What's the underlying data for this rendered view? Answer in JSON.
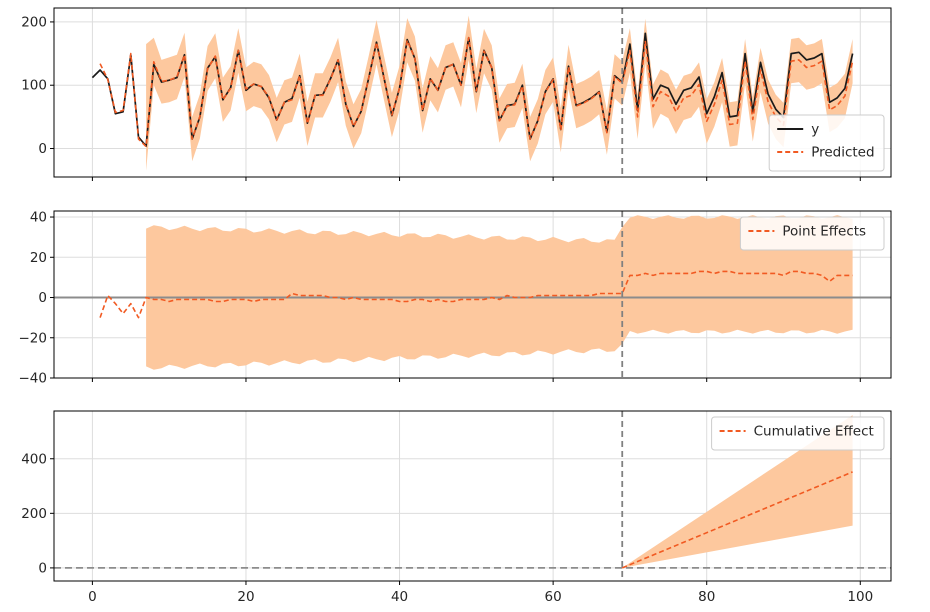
{
  "chart_data": [
    {
      "type": "line",
      "xlim": [
        -5,
        104
      ],
      "ylim": [
        -45,
        222
      ],
      "yticks": [
        0,
        100,
        200
      ],
      "xticks": [
        0,
        20,
        40,
        60,
        80,
        100
      ],
      "grid": true,
      "legend_placement": "lower-right",
      "intervention_x": 69,
      "series": [
        {
          "name": "y",
          "color": "#1a1a1a",
          "style": "solid",
          "x": [
            0,
            1,
            2,
            3,
            4,
            5,
            6,
            7,
            8,
            9,
            10,
            11,
            12,
            13,
            14,
            15,
            16,
            17,
            18,
            19,
            20,
            21,
            22,
            23,
            24,
            25,
            26,
            27,
            28,
            29,
            30,
            31,
            32,
            33,
            34,
            35,
            36,
            37,
            38,
            39,
            40,
            41,
            42,
            43,
            44,
            45,
            46,
            47,
            48,
            49,
            50,
            51,
            52,
            53,
            54,
            55,
            56,
            57,
            58,
            59,
            60,
            61,
            62,
            63,
            64,
            65,
            66,
            67,
            68,
            69,
            70,
            71,
            72,
            73,
            74,
            75,
            76,
            77,
            78,
            79,
            80,
            81,
            82,
            83,
            84,
            85,
            86,
            87,
            88,
            89,
            90,
            91,
            92,
            93,
            94,
            95,
            96,
            97,
            98,
            99
          ],
          "values": [
            112,
            124,
            110,
            55,
            58,
            148,
            18,
            4,
            133,
            105,
            108,
            112,
            148,
            15,
            50,
            127,
            145,
            77,
            96,
            155,
            92,
            102,
            98,
            80,
            45,
            73,
            79,
            115,
            40,
            84,
            85,
            110,
            140,
            70,
            35,
            59,
            112,
            168,
            110,
            52,
            96,
            172,
            142,
            60,
            110,
            92,
            128,
            133,
            100,
            175,
            90,
            155,
            128,
            44,
            68,
            70,
            100,
            15,
            44,
            90,
            110,
            30,
            130,
            68,
            73,
            80,
            90,
            26,
            115,
            105,
            165,
            60,
            182,
            78,
            100,
            95,
            70,
            92,
            96,
            113,
            55,
            82,
            120,
            50,
            52,
            150,
            58,
            136,
            86,
            62,
            49,
            150,
            152,
            140,
            143,
            150,
            73,
            80,
            95,
            150
          ]
        },
        {
          "name": "Predicted",
          "color": "#f15a22",
          "style": "dashed",
          "x": [
            0,
            1,
            2,
            3,
            4,
            5,
            6,
            7,
            8,
            9,
            10,
            11,
            12,
            13,
            14,
            15,
            16,
            17,
            18,
            19,
            20,
            21,
            22,
            23,
            24,
            25,
            26,
            27,
            28,
            29,
            30,
            31,
            32,
            33,
            34,
            35,
            36,
            37,
            38,
            39,
            40,
            41,
            42,
            43,
            44,
            45,
            46,
            47,
            48,
            49,
            50,
            51,
            52,
            53,
            54,
            55,
            56,
            57,
            58,
            59,
            60,
            61,
            62,
            63,
            64,
            65,
            66,
            67,
            68,
            69,
            70,
            71,
            72,
            73,
            74,
            75,
            76,
            77,
            78,
            79,
            80,
            81,
            82,
            83,
            84,
            85,
            86,
            87,
            88,
            89,
            90,
            91,
            92,
            93,
            94,
            95,
            96,
            97,
            98,
            99
          ],
          "values": [
            null,
            134,
            109,
            57,
            60,
            150,
            15,
            3,
            137,
            106,
            108,
            113,
            148,
            15,
            51,
            126,
            146,
            77,
            95,
            155,
            94,
            102,
            98,
            81,
            45,
            73,
            77,
            115,
            39,
            84,
            84,
            109,
            140,
            71,
            35,
            59,
            112,
            168,
            110,
            53,
            96,
            171,
            142,
            60,
            111,
            92,
            128,
            133,
            100,
            175,
            91,
            154,
            128,
            44,
            67,
            69,
            99,
            15,
            43,
            89,
            109,
            29,
            129,
            67,
            72,
            79,
            89,
            25,
            114,
            103,
            155,
            50,
            170,
            66,
            90,
            83,
            58,
            80,
            84,
            101,
            43,
            70,
            108,
            38,
            40,
            138,
            46,
            124,
            74,
            50,
            37,
            138,
            140,
            128,
            131,
            138,
            61,
            68,
            83,
            138
          ],
          "band_upper": [
            null,
            null,
            null,
            null,
            null,
            null,
            null,
            165,
            175,
            140,
            144,
            148,
            183,
            50,
            86,
            162,
            182,
            112,
            130,
            190,
            128,
            137,
            133,
            116,
            80,
            108,
            112,
            150,
            74,
            119,
            119,
            144,
            175,
            106,
            70,
            94,
            147,
            203,
            145,
            88,
            131,
            206,
            177,
            95,
            146,
            127,
            163,
            168,
            135,
            210,
            126,
            189,
            163,
            79,
            102,
            104,
            134,
            50,
            78,
            124,
            144,
            64,
            164,
            102,
            107,
            114,
            124,
            60,
            149,
            138,
            190,
            85,
            205,
            101,
            125,
            118,
            93,
            115,
            119,
            136,
            78,
            105,
            143,
            73,
            75,
            173,
            81,
            159,
            109,
            85,
            72,
            173,
            175,
            163,
            166,
            173,
            96,
            103,
            118,
            173
          ],
          "band_lower": [
            null,
            null,
            null,
            null,
            null,
            null,
            null,
            -35,
            100,
            71,
            73,
            78,
            113,
            -20,
            16,
            91,
            111,
            42,
            60,
            120,
            59,
            67,
            63,
            46,
            10,
            38,
            42,
            80,
            4,
            49,
            49,
            74,
            105,
            36,
            0,
            24,
            77,
            133,
            75,
            18,
            61,
            136,
            107,
            25,
            76,
            57,
            93,
            98,
            65,
            140,
            56,
            119,
            93,
            9,
            32,
            34,
            64,
            -20,
            8,
            54,
            74,
            -6,
            94,
            32,
            37,
            44,
            54,
            -10,
            79,
            68,
            120,
            15,
            135,
            31,
            55,
            48,
            23,
            45,
            49,
            66,
            8,
            35,
            73,
            3,
            5,
            103,
            11,
            89,
            39,
            15,
            2,
            103,
            105,
            93,
            96,
            103,
            26,
            33,
            48,
            103
          ]
        }
      ]
    },
    {
      "type": "line",
      "xlim": [
        -5,
        104
      ],
      "ylim": [
        -40,
        43
      ],
      "yticks": [
        -40,
        -20,
        0,
        20,
        40
      ],
      "ytick_labels": [
        "−40",
        "−20",
        "0",
        "20",
        "40"
      ],
      "xticks": [
        0,
        20,
        40,
        60,
        80,
        100
      ],
      "grid": true,
      "legend_placement": "upper-right",
      "intervention_x": 69,
      "zero_line": true,
      "series": [
        {
          "name": "Point Effects",
          "color": "#f15a22",
          "style": "dashed",
          "x": [
            1,
            2,
            3,
            4,
            5,
            6,
            7,
            8,
            9,
            10,
            11,
            12,
            13,
            14,
            15,
            16,
            17,
            18,
            19,
            20,
            21,
            22,
            23,
            24,
            25,
            26,
            27,
            28,
            29,
            30,
            31,
            32,
            33,
            34,
            35,
            36,
            37,
            38,
            39,
            40,
            41,
            42,
            43,
            44,
            45,
            46,
            47,
            48,
            49,
            50,
            51,
            52,
            53,
            54,
            55,
            56,
            57,
            58,
            59,
            60,
            61,
            62,
            63,
            64,
            65,
            66,
            67,
            68,
            69,
            70,
            71,
            72,
            73,
            74,
            75,
            76,
            77,
            78,
            79,
            80,
            81,
            82,
            83,
            84,
            85,
            86,
            87,
            88,
            89,
            90,
            91,
            92,
            93,
            94,
            95,
            96,
            97,
            98,
            99
          ],
          "values": [
            -10,
            1,
            -3,
            -8,
            -3,
            -10,
            0,
            -1,
            -1,
            -2,
            -1,
            -1,
            -1,
            -1,
            -1,
            -2,
            -2,
            -1,
            -1,
            -1,
            -2,
            -1,
            -1,
            -1,
            -1,
            2,
            1,
            1,
            1,
            1,
            0,
            0,
            -1,
            0,
            -1,
            -1,
            -1,
            -1,
            -1,
            -2,
            -2,
            -1,
            -1,
            -2,
            -1,
            -2,
            -2,
            -1,
            -1,
            -1,
            -1,
            0,
            -1,
            1,
            0,
            0,
            0,
            1,
            1,
            1,
            1,
            1,
            1,
            1,
            1,
            2,
            2,
            2,
            2,
            11,
            11,
            12,
            11,
            12,
            12,
            12,
            12,
            12,
            13,
            13,
            12,
            13,
            13,
            12,
            12,
            12,
            12,
            12,
            12,
            11,
            13,
            13,
            12,
            12,
            11,
            8,
            11,
            11,
            11
          ],
          "band_x": [
            7,
            99
          ],
          "band_upper_start": 35,
          "band_lower_start": -35,
          "band_upper_pre": 28,
          "band_lower_pre": -26,
          "band_upper_post": 40,
          "band_lower_post": -17
        }
      ]
    },
    {
      "type": "line",
      "xlim": [
        -5,
        104
      ],
      "ylim": [
        -48,
        575
      ],
      "yticks": [
        0,
        200,
        400
      ],
      "xticks": [
        0,
        20,
        40,
        60,
        80,
        100
      ],
      "xtick_labels": [
        "0",
        "20",
        "40",
        "60",
        "80",
        "100"
      ],
      "grid": true,
      "legend_placement": "upper-right",
      "intervention_x": 69,
      "zero_line": true,
      "series": [
        {
          "name": "Cumulative Effect",
          "color": "#f15a22",
          "style": "dashed",
          "x": [
            69,
            99
          ],
          "values": [
            0,
            352
          ],
          "band_upper": [
            0,
            560
          ],
          "band_lower": [
            0,
            155
          ]
        }
      ]
    }
  ],
  "colors": {
    "band": "#fdc89e",
    "predicted": "#f15a22",
    "actual": "#1a1a1a",
    "grid": "#dddddd",
    "vline": "#808080",
    "zero": "#8c8c8c"
  }
}
